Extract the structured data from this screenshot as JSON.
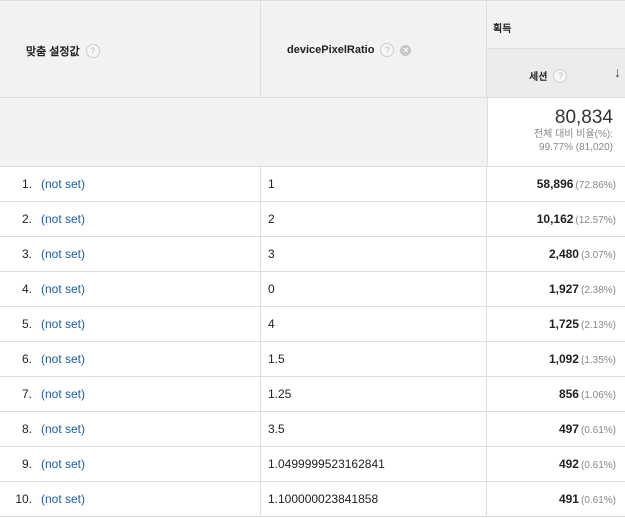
{
  "header": {
    "col1_label": "맞춤 설정값",
    "col2_label": "devicePixelRatio",
    "group_label": "획득",
    "metric_label": "세션"
  },
  "totals": {
    "value": "80,834",
    "line1": "전체 대비 비율(%):",
    "line2": "99.77% (81,020)"
  },
  "rows": [
    {
      "index": "1.",
      "dimension": "(not set)",
      "ratio": "1",
      "sessions": "58,896",
      "pct": "(72.86%)"
    },
    {
      "index": "2.",
      "dimension": "(not set)",
      "ratio": "2",
      "sessions": "10,162",
      "pct": "(12.57%)"
    },
    {
      "index": "3.",
      "dimension": "(not set)",
      "ratio": "3",
      "sessions": "2,480",
      "pct": "(3.07%)"
    },
    {
      "index": "4.",
      "dimension": "(not set)",
      "ratio": "0",
      "sessions": "1,927",
      "pct": "(2.38%)"
    },
    {
      "index": "5.",
      "dimension": "(not set)",
      "ratio": "4",
      "sessions": "1,725",
      "pct": "(2.13%)"
    },
    {
      "index": "6.",
      "dimension": "(not set)",
      "ratio": "1.5",
      "sessions": "1,092",
      "pct": "(1.35%)"
    },
    {
      "index": "7.",
      "dimension": "(not set)",
      "ratio": "1.25",
      "sessions": "856",
      "pct": "(1.06%)"
    },
    {
      "index": "8.",
      "dimension": "(not set)",
      "ratio": "3.5",
      "sessions": "497",
      "pct": "(0.61%)"
    },
    {
      "index": "9.",
      "dimension": "(not set)",
      "ratio": "1.0499999523162841",
      "sessions": "492",
      "pct": "(0.61%)"
    },
    {
      "index": "10.",
      "dimension": "(not set)",
      "ratio": "1.100000023841858",
      "sessions": "491",
      "pct": "(0.61%)"
    }
  ],
  "colors": {
    "link": "#1a5d9e",
    "header_bg": "#f2f2f2",
    "border": "#dddddd"
  }
}
